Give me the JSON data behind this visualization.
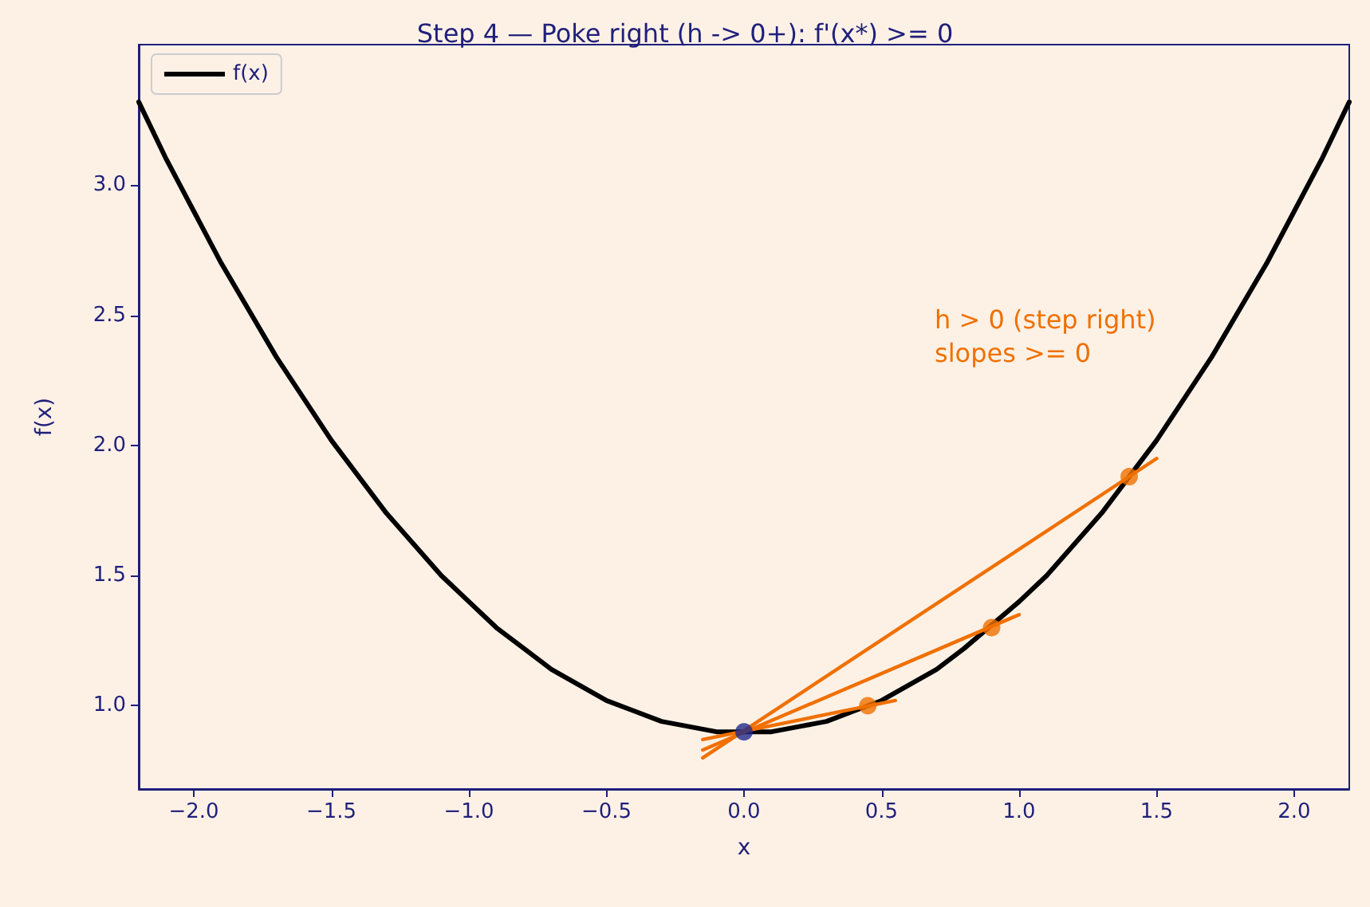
{
  "chart_data": {
    "type": "line",
    "title": "Step 4 — Poke right (h -> 0+): f'(x*) >= 0",
    "xlabel": "x",
    "ylabel": "f(x)",
    "xlim": [
      -2.2,
      2.2
    ],
    "ylim": [
      0.68,
      3.54
    ],
    "xticks": [
      {
        "value": -2,
        "label": "−2.0"
      },
      {
        "value": -1.5,
        "label": "−1.5"
      },
      {
        "value": -1,
        "label": "−1.0"
      },
      {
        "value": -0.5,
        "label": "−0.5"
      },
      {
        "value": 0,
        "label": "0.0"
      },
      0.5,
      {
        "value": 1,
        "label": "1.0"
      },
      1.5,
      {
        "value": 2,
        "label": "2.0"
      }
    ],
    "yticks": [
      {
        "value": 1,
        "label": "1.0"
      },
      1.5,
      {
        "value": 2,
        "label": "2.0"
      },
      2.5,
      {
        "value": 3,
        "label": "3.0"
      }
    ],
    "grid": false,
    "legend": "top left",
    "annotations": [
      "h > 0 (step right)\nslopes >= 0"
    ],
    "series": [
      {
        "name": "f(x)",
        "color": "#000000",
        "marker": "none",
        "x": [
          -2.2,
          -2.1,
          -2.0,
          -1.9,
          -1.8,
          -1.7,
          -1.6,
          -1.5,
          -1.4,
          -1.3,
          -1.2,
          -1.1,
          -1.0,
          -0.9,
          -0.8,
          -0.7,
          -0.6,
          -0.5,
          -0.4,
          -0.3,
          -0.2,
          -0.1,
          0.1,
          0.2,
          0.3,
          0.4,
          0.5,
          0.6,
          0.7,
          0.8,
          1.0,
          1.1,
          1.2,
          1.3,
          1.5,
          1.6,
          1.7,
          1.8,
          1.9,
          2.0,
          2.1,
          2.2
        ],
        "values": [
          3.32,
          3.1,
          2.9,
          2.7,
          2.52,
          2.34,
          2.18,
          2.02,
          1.88,
          1.74,
          1.62,
          1.5,
          1.4,
          1.3,
          1.22,
          1.14,
          1.08,
          1.02,
          0.98,
          0.94,
          0.92,
          0.9,
          0.9,
          0.92,
          0.94,
          0.98,
          1.02,
          1.08,
          1.14,
          1.22,
          1.4,
          1.5,
          1.62,
          1.74,
          2.02,
          2.18,
          2.34,
          2.52,
          2.7,
          2.9,
          3.1,
          3.32
        ]
      },
      {
        "color": "#f07000",
        "marker": "none",
        "x": [
          -0.15,
          1.5
        ],
        "values": [
          0.8,
          1.95
        ]
      },
      {
        "color": "#f07000",
        "marker": "none",
        "x": [
          -0.15,
          1.0
        ],
        "values": [
          0.83,
          1.35
        ]
      },
      {
        "color": "#f07000",
        "marker": "none",
        "x": [
          -0.15,
          0.55
        ],
        "values": [
          0.87,
          1.02
        ]
      },
      {
        "type": "scatter",
        "color": "#f07000",
        "marker": "circle",
        "x": [
          0.45,
          0.9,
          1.4
        ],
        "values": [
          1.0,
          1.3,
          1.88
        ]
      },
      {
        "type": "scatter",
        "color": "#1f2a8c",
        "marker": "circle",
        "x": [
          0
        ],
        "values": [
          0.9
        ]
      }
    ]
  }
}
